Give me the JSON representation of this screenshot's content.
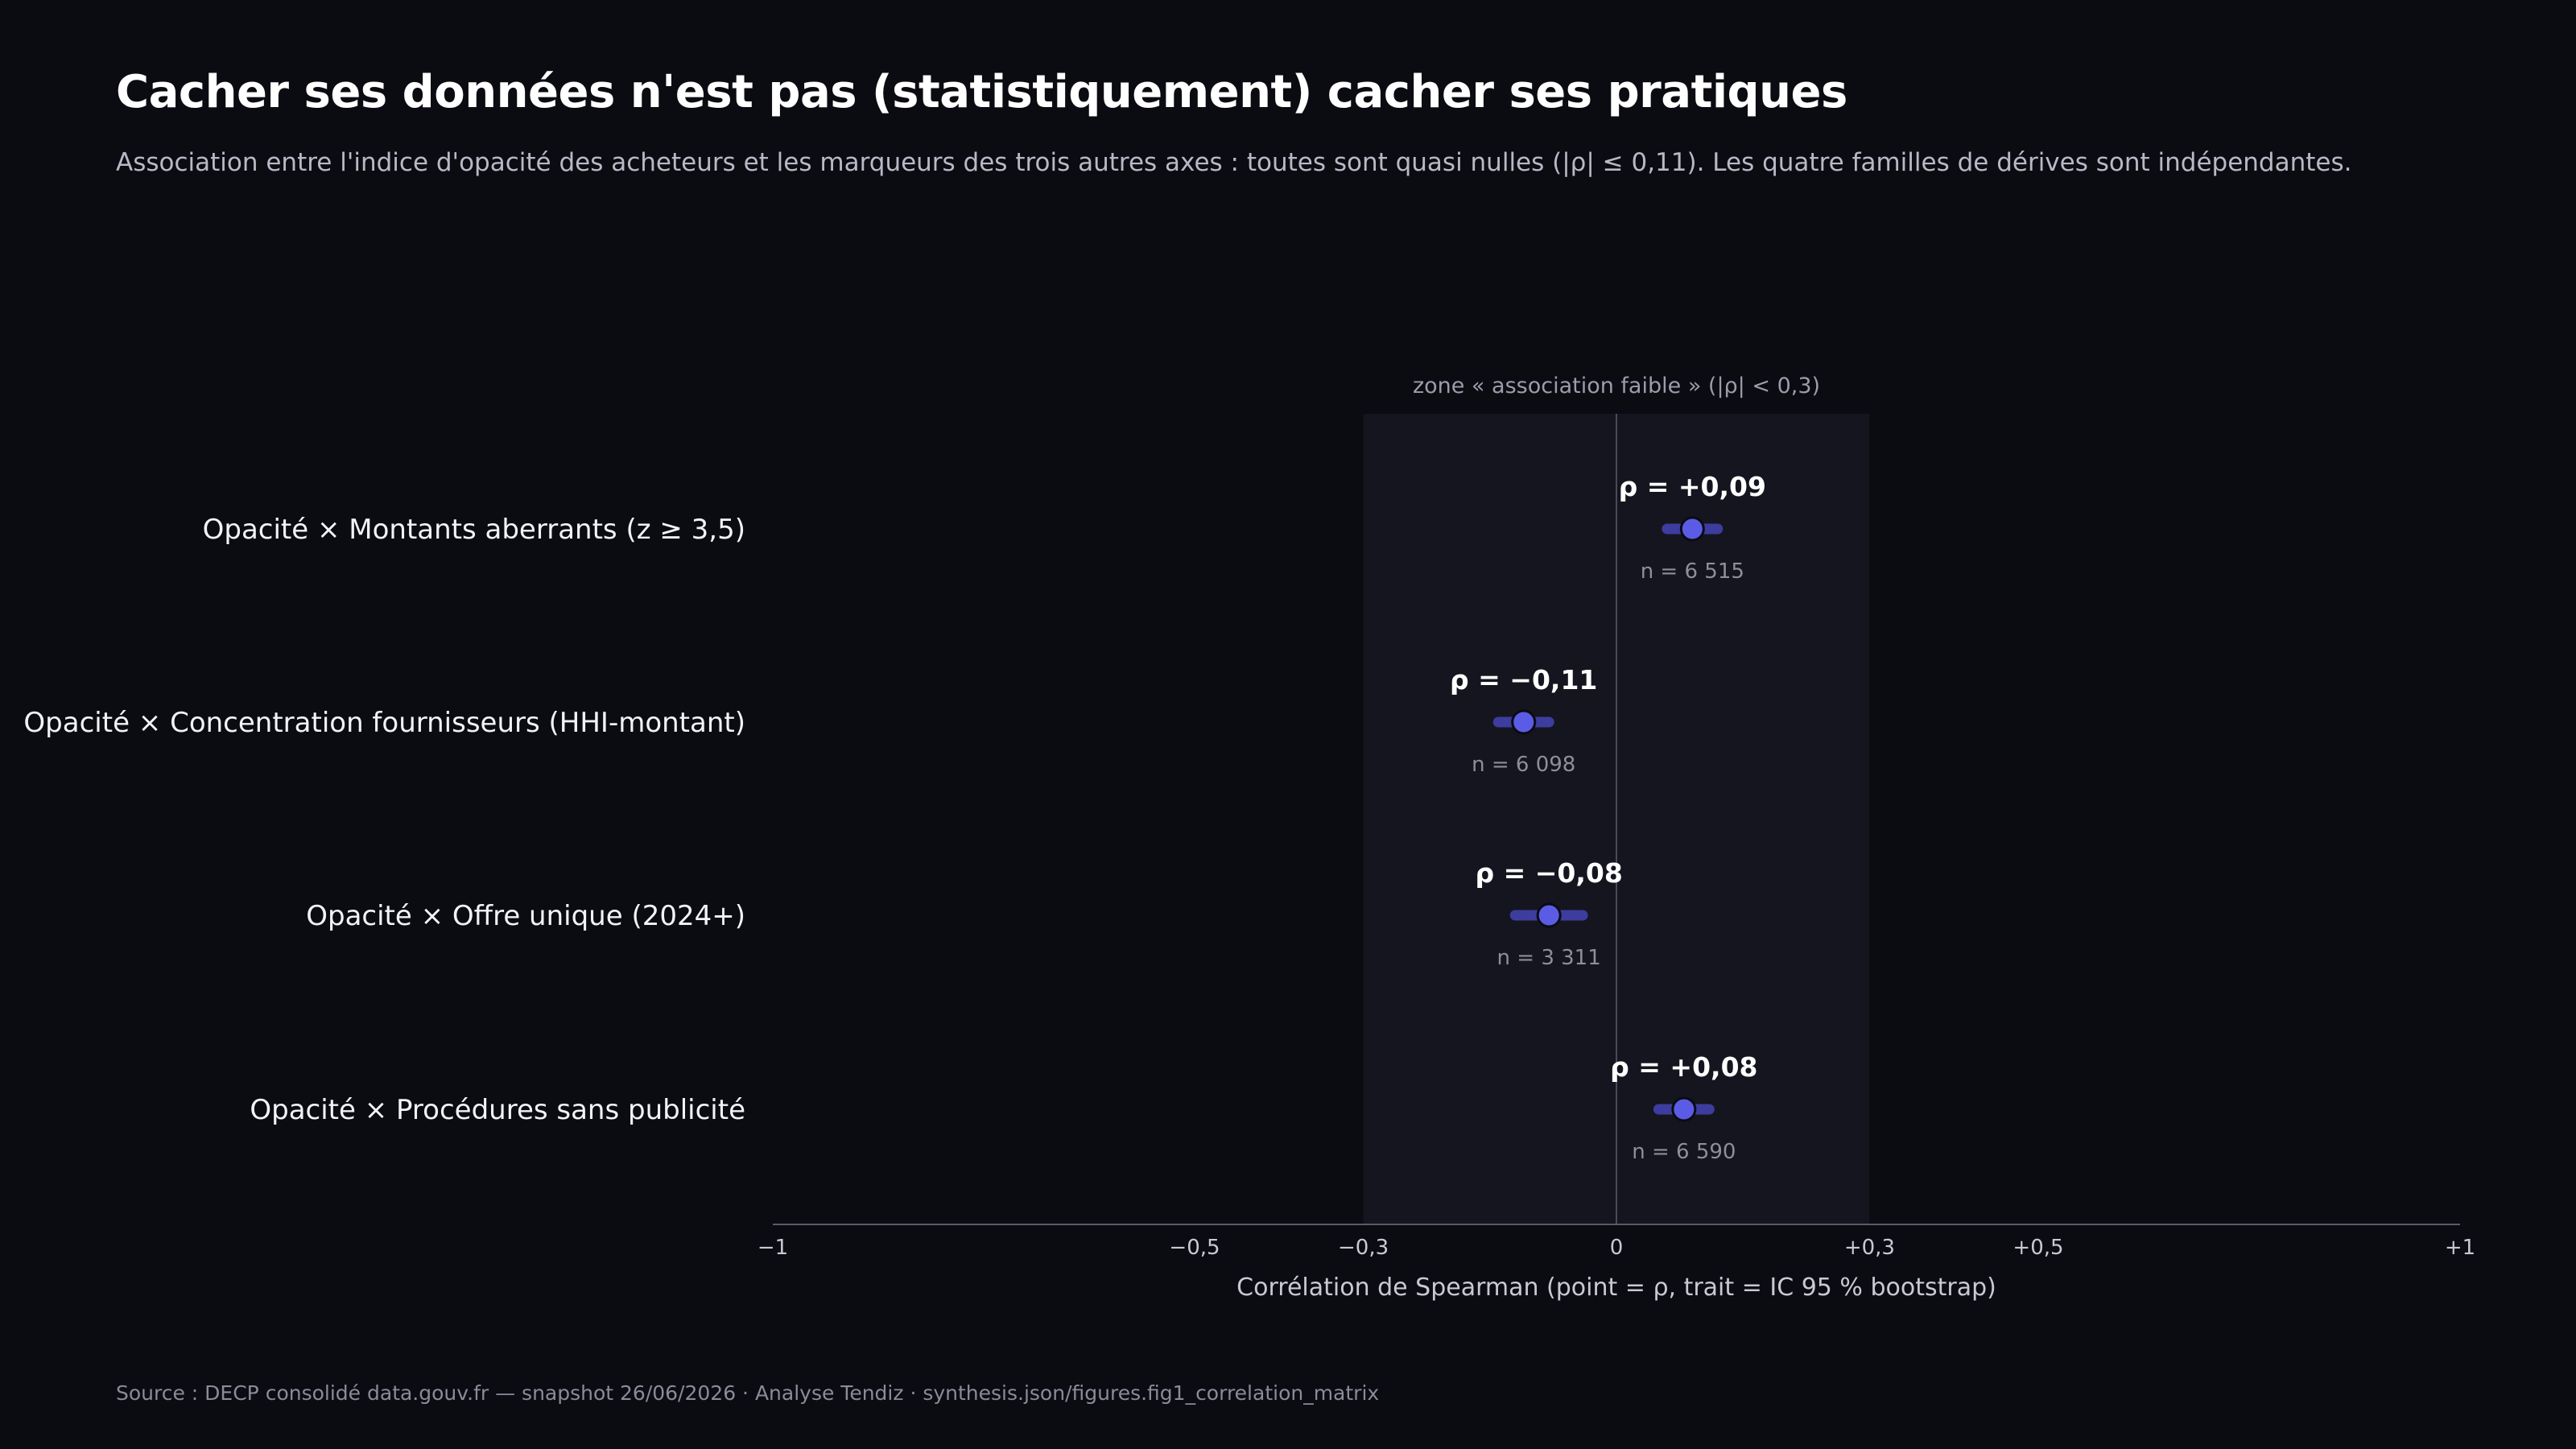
{
  "header": {
    "title": "Cacher ses données n'est pas (statistiquement) cacher ses pratiques",
    "subtitle": "Association entre l'indice d'opacité des acheteurs et les marqueurs des trois autres axes : toutes sont quasi nulles (|ρ| ≤ 0,11). Les quatre familles de dérives sont indépendantes."
  },
  "footer": {
    "source": "Source : DECP consolidé data.gouv.fr — snapshot 26/06/2026 · Analyse Tendiz  ·  synthesis.json/figures.fig1_correlation_matrix"
  },
  "colors": {
    "background": "#0b0b12",
    "point": "#5b5ce6",
    "ci": "#3c3d9e",
    "zone": "#15151f",
    "zero_line": "#4a4a58",
    "axis": "#5a5a68"
  },
  "chart_data": {
    "type": "scatter",
    "subtype": "forest-plot",
    "xlabel": "Corrélation de Spearman (point = ρ, trait = IC 95 % bootstrap)",
    "xlim": [
      -1,
      1
    ],
    "xticks": [
      {
        "value": -1,
        "label": "−1"
      },
      {
        "value": -0.5,
        "label": "−0,5"
      },
      {
        "value": -0.3,
        "label": "−0,3"
      },
      {
        "value": 0,
        "label": "0"
      },
      {
        "value": 0.3,
        "label": "+0,3"
      },
      {
        "value": 0.5,
        "label": "+0,5"
      },
      {
        "value": 1,
        "label": "+1"
      }
    ],
    "zone": {
      "range": [
        -0.3,
        0.3
      ],
      "label": "zone « association faible » (|ρ| < 0,3)"
    },
    "rows": [
      {
        "prefix": "Opacité ×",
        "label": "Montants aberrants (z ≥ 3,5)",
        "rho": 0.09,
        "ci": [
          0.06,
          0.12
        ],
        "rho_label": "ρ = +0,09",
        "n_label": "n = 6 515"
      },
      {
        "prefix": "Opacité ×",
        "label": "Concentration fournisseurs (HHI-montant)",
        "rho": -0.11,
        "ci": [
          -0.14,
          -0.08
        ],
        "rho_label": "ρ = −0,11",
        "n_label": "n = 6 098"
      },
      {
        "prefix": "Opacité ×",
        "label": "Offre unique (2024+)",
        "rho": -0.08,
        "ci": [
          -0.12,
          -0.04
        ],
        "rho_label": "ρ = −0,08",
        "n_label": "n = 3 311"
      },
      {
        "prefix": "Opacité ×",
        "label": "Procédures sans publicité",
        "rho": 0.08,
        "ci": [
          0.05,
          0.11
        ],
        "rho_label": "ρ = +0,08",
        "n_label": "n = 6 590"
      }
    ]
  }
}
